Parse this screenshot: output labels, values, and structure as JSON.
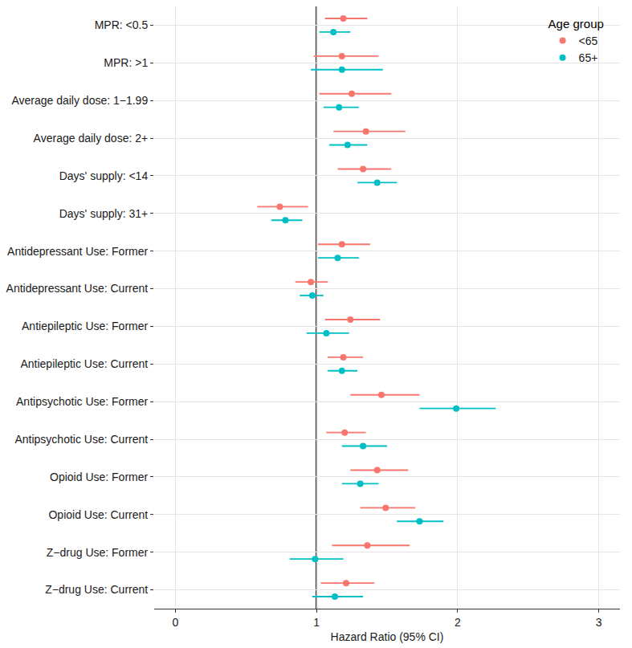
{
  "chart_data": {
    "type": "forest",
    "x_label": "Hazard Ratio (95% CI)",
    "legend_title": "Age group",
    "legend": "top right",
    "grid": true,
    "xlim": [
      -0.15,
      3.15
    ],
    "xticks": [
      0,
      1,
      2,
      3
    ],
    "reference_line": 1,
    "categories": [
      "MPR: <0.5",
      "MPR: >1",
      "Average daily dose: 1−1.99",
      "Average daily dose: 2+",
      "Days' supply: <14",
      "Days' supply: 31+",
      "Antidepressant Use: Former",
      "Antidepressant Use: Current",
      "Antiepileptic Use: Former",
      "Antiepileptic Use: Current",
      "Antipsychotic Use: Former",
      "Antipsychotic Use: Current",
      "Opioid Use: Former",
      "Opioid Use: Current",
      "Z−drug Use: Former",
      "Z−drug Use: Current"
    ],
    "series": [
      {
        "name": "<65",
        "color": "#F8766D",
        "marker": "circle",
        "values": [
          1.19,
          1.18,
          1.25,
          1.35,
          1.33,
          0.74,
          1.18,
          0.96,
          1.24,
          1.19,
          1.46,
          1.2,
          1.43,
          1.49,
          1.36,
          1.21
        ],
        "lower": [
          1.06,
          0.98,
          1.02,
          1.12,
          1.15,
          0.58,
          1.01,
          0.85,
          1.06,
          1.08,
          1.24,
          1.07,
          1.24,
          1.31,
          1.11,
          1.03
        ],
        "upper": [
          1.36,
          1.44,
          1.53,
          1.63,
          1.53,
          0.94,
          1.38,
          1.08,
          1.45,
          1.33,
          1.73,
          1.35,
          1.65,
          1.7,
          1.66,
          1.41
        ]
      },
      {
        "name": "65+",
        "color": "#00BFC4",
        "marker": "circle",
        "values": [
          1.12,
          1.18,
          1.16,
          1.22,
          1.43,
          0.78,
          1.15,
          0.97,
          1.07,
          1.18,
          1.99,
          1.33,
          1.31,
          1.73,
          0.99,
          1.13
        ],
        "lower": [
          1.02,
          0.96,
          1.05,
          1.09,
          1.29,
          0.68,
          1.01,
          0.88,
          0.93,
          1.08,
          1.73,
          1.18,
          1.18,
          1.57,
          0.81,
          0.97
        ],
        "upper": [
          1.24,
          1.47,
          1.3,
          1.36,
          1.57,
          0.9,
          1.3,
          1.05,
          1.23,
          1.29,
          2.27,
          1.5,
          1.44,
          1.9,
          1.19,
          1.33
        ]
      }
    ]
  }
}
